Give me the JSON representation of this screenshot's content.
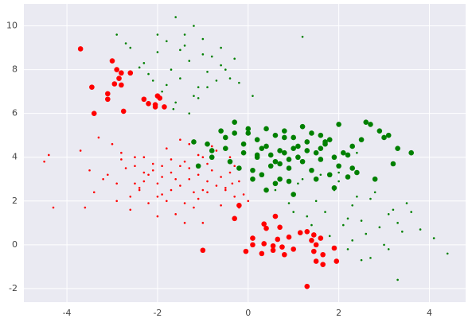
{
  "chart_data": {
    "type": "scatter",
    "xlim": [
      -4.95,
      4.8
    ],
    "ylim": [
      -2.62,
      11.0
    ],
    "xticks": [
      -4,
      -2,
      0,
      2,
      4
    ],
    "yticks": [
      -2,
      0,
      2,
      4,
      6,
      8,
      10
    ],
    "grid": true,
    "background": "#eaeaf2",
    "series": [
      {
        "color": "#ff0000",
        "marker_size": 1.3,
        "x": [
          -4.4,
          -4.3,
          -3.7,
          -3.4,
          -3.3,
          -3.1,
          -3.0,
          -2.9,
          -2.8,
          -2.6,
          -2.5,
          -2.4,
          -2.3,
          -2.2,
          -2.1,
          -2.0,
          -1.9,
          -1.8,
          -1.7,
          -1.6,
          -1.5,
          -1.4,
          -1.3,
          -1.2,
          -1.1,
          -1.0,
          -0.9,
          -0.8,
          -0.7,
          -0.6,
          -0.5,
          -0.4,
          -0.3,
          -0.2,
          -0.1,
          0.0,
          -2.7,
          -2.5,
          -2.3,
          -2.1,
          -1.9,
          -1.7,
          -1.5,
          -1.3,
          -1.1,
          -0.9,
          -0.7,
          -0.5,
          -0.3,
          -1.8,
          -1.6,
          -1.4,
          -1.2,
          -1.0,
          -2.0,
          -2.2,
          -2.4,
          -1.5,
          -1.1,
          -0.8,
          -3.2,
          -2.9,
          -2.6,
          -2.0,
          -1.4,
          -0.6,
          -0.4,
          -1.3,
          -1.7,
          -2.8,
          -3.6,
          -4.5,
          -3.5,
          -0.2,
          -0.9,
          -1.9,
          -2.3,
          -1.0,
          -0.35,
          -2.5
        ],
        "values": [
          4.1,
          1.7,
          4.3,
          2.4,
          4.9,
          3.2,
          4.6,
          2.8,
          3.9,
          2.2,
          3.6,
          2.5,
          3.3,
          1.9,
          3.7,
          2.8,
          3.1,
          4.4,
          2.5,
          3.0,
          2.7,
          3.8,
          3.5,
          2.4,
          3.2,
          4.0,
          2.9,
          3.4,
          2.7,
          3.1,
          2.5,
          3.3,
          2.2,
          2.9,
          2.3,
          2.0,
          3.5,
          4.0,
          2.9,
          3.4,
          2.3,
          3.9,
          3.6,
          4.6,
          2.1,
          3.7,
          4.3,
          2.6,
          3.6,
          2.0,
          1.4,
          1.9,
          1.7,
          2.5,
          2.2,
          3.2,
          2.6,
          4.8,
          4.1,
          4.5,
          3.0,
          2.0,
          1.6,
          1.3,
          1.0,
          1.8,
          4.0,
          3.0,
          3.3,
          4.2,
          1.7,
          3.8,
          3.4,
          1.7,
          2.4,
          3.6,
          4.0,
          1.0,
          2.8,
          2.8
        ]
      },
      {
        "color": "#008000",
        "marker_size": 1.3,
        "x": [
          -2.9,
          -2.6,
          -2.3,
          -2.0,
          -1.8,
          -1.6,
          -1.4,
          -1.2,
          -1.0,
          -0.8,
          -0.6,
          -0.4,
          -0.2,
          0.1,
          -1.7,
          -1.5,
          -1.3,
          -1.1,
          -0.9,
          -2.1,
          -2.4,
          -1.9,
          -1.6,
          -1.2,
          -0.7,
          -0.5,
          -1.4,
          -1.0,
          -2.2,
          -1.8,
          -1.65,
          -1.3,
          -1.1,
          -0.9,
          -2.7,
          -0.3,
          -1.5,
          -2.0,
          1.2,
          -0.6,
          0.6,
          0.9,
          1.1,
          1.3,
          1.5,
          1.7,
          1.9,
          2.1,
          2.3,
          2.5,
          2.7,
          2.9,
          3.1,
          3.3,
          3.5,
          3.8,
          4.1,
          4.4,
          1.0,
          1.4,
          1.8,
          2.2,
          2.6,
          3.0,
          3.4,
          2.0,
          2.4,
          2.8,
          3.2,
          1.6,
          2.2,
          2.7,
          3.1,
          3.6,
          1.2,
          2.0,
          2.5,
          3.3,
          2.3,
          2.4
        ],
        "values": [
          9.6,
          9.0,
          8.3,
          8.8,
          9.3,
          10.4,
          9.6,
          10.0,
          9.4,
          8.6,
          8.2,
          7.6,
          7.4,
          6.8,
          8.0,
          7.6,
          8.4,
          7.2,
          7.9,
          7.5,
          8.1,
          7.0,
          6.5,
          6.8,
          7.5,
          8.0,
          9.1,
          8.7,
          7.8,
          7.3,
          6.2,
          6.0,
          6.7,
          7.2,
          9.2,
          8.5,
          8.9,
          9.6,
          9.5,
          9.0,
          2.5,
          1.9,
          2.8,
          1.3,
          2.0,
          1.5,
          2.5,
          0.9,
          1.8,
          1.1,
          2.1,
          0.8,
          1.4,
          1.0,
          1.9,
          0.7,
          0.3,
          -0.4,
          1.5,
          0.9,
          0.4,
          -0.2,
          0.5,
          0.0,
          0.6,
          2.9,
          2.2,
          2.4,
          1.6,
          3.2,
          1.2,
          -0.6,
          -0.2,
          1.5,
          3.0,
          3.3,
          -0.7,
          -1.6,
          0.2,
          4.2
        ]
      },
      {
        "color": "#ff0000",
        "marker_size": 3.3,
        "x": [
          -3.7,
          -3.0,
          -2.9,
          -2.8,
          -2.6,
          -2.85,
          -2.95,
          -2.8,
          -3.45,
          -3.1,
          -3.1,
          -2.75,
          -3.4,
          -2.3,
          -2.2,
          -2.05,
          -1.95,
          -2.05,
          -1.85,
          -2.0,
          -0.2,
          -0.3,
          0.35,
          0.4,
          0.6,
          0.7,
          0.1,
          0.1,
          0.35,
          0.65,
          0.9,
          0.75,
          1.0,
          0.3,
          0.55,
          0.8,
          1.3,
          1.15,
          1.4,
          1.45,
          1.6,
          1.5,
          1.45,
          1.65,
          1.9,
          1.5,
          1.65,
          1.95,
          -1.0,
          -0.05,
          1.3,
          0.55
        ],
        "values": [
          8.95,
          8.4,
          8.0,
          7.85,
          7.85,
          7.6,
          7.35,
          7.3,
          7.2,
          6.9,
          6.65,
          6.1,
          6.0,
          6.65,
          6.45,
          6.4,
          6.7,
          6.3,
          6.3,
          6.8,
          1.8,
          1.2,
          0.95,
          0.75,
          1.3,
          0.8,
          0.3,
          0.0,
          0.05,
          0.25,
          0.35,
          -0.1,
          -0.2,
          -0.4,
          -0.25,
          -0.45,
          0.6,
          0.55,
          0.2,
          0.45,
          0.3,
          0.0,
          -0.3,
          -0.45,
          -0.15,
          -0.75,
          -0.9,
          -0.75,
          -0.25,
          -0.3,
          -1.9,
          -0.05
        ]
      },
      {
        "color": "#008000",
        "marker_size": 3.3,
        "x": [
          -1.2,
          -0.9,
          -0.8,
          -0.5,
          -0.3,
          -0.1,
          0.0,
          0.2,
          0.4,
          0.6,
          0.8,
          1.0,
          1.1,
          1.3,
          1.5,
          1.7,
          1.9,
          2.1,
          2.3,
          2.5,
          2.7,
          2.9,
          3.1,
          3.3,
          3.6,
          -0.4,
          -0.2,
          0.1,
          0.3,
          0.5,
          0.7,
          0.9,
          1.2,
          1.4,
          1.6,
          1.8,
          2.0,
          2.2,
          2.4,
          2.6,
          -0.6,
          -0.3,
          0.0,
          0.2,
          0.4,
          0.6,
          0.8,
          1.0,
          1.2,
          1.4,
          1.6,
          1.8,
          2.0,
          0.5,
          0.7,
          0.9,
          1.1,
          1.3,
          -0.1,
          0.3,
          0.6,
          0.9,
          1.5,
          1.9,
          2.8,
          3.2,
          2.2,
          1.0,
          0.4,
          -0.8,
          -1.1,
          0.1,
          0.7,
          1.6,
          2.3,
          3.0,
          0.2,
          0.8,
          1.7,
          -0.5
        ],
        "values": [
          4.7,
          4.6,
          4.3,
          4.9,
          5.1,
          4.2,
          5.3,
          4.0,
          4.5,
          3.8,
          4.9,
          4.4,
          4.0,
          4.7,
          4.2,
          4.6,
          4.0,
          4.2,
          4.5,
          4.8,
          5.5,
          5.2,
          5.0,
          4.4,
          4.2,
          3.8,
          3.5,
          3.4,
          3.2,
          3.6,
          3.0,
          3.5,
          3.8,
          3.4,
          3.9,
          3.2,
          3.6,
          4.1,
          3.3,
          5.6,
          5.2,
          5.6,
          5.1,
          4.8,
          5.3,
          5.0,
          5.2,
          4.9,
          5.4,
          5.1,
          5.0,
          4.8,
          5.5,
          4.1,
          4.3,
          3.9,
          4.5,
          4.3,
          4.6,
          4.4,
          2.8,
          2.9,
          3.0,
          2.6,
          3.0,
          3.7,
          3.1,
          2.3,
          2.5,
          4.0,
          3.6,
          3.0,
          3.7,
          4.4,
          3.5,
          4.9,
          4.1,
          4.2,
          4.7,
          4.4
        ]
      }
    ]
  }
}
